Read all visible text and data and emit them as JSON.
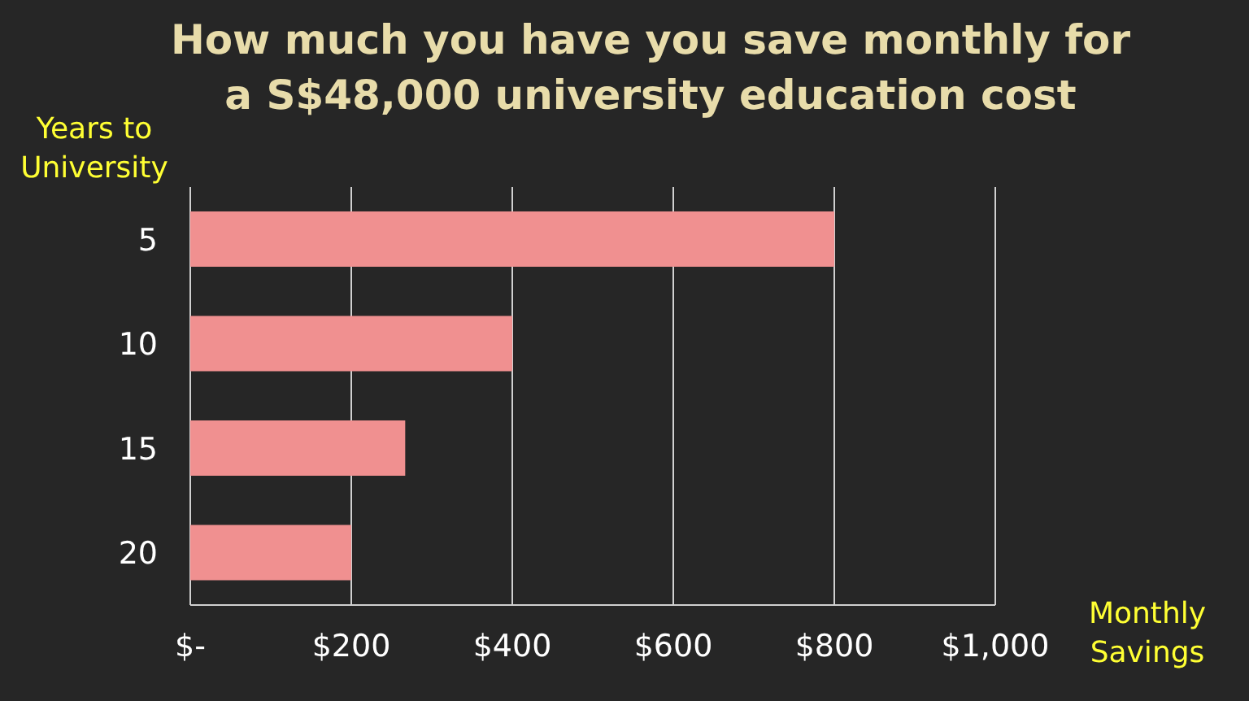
{
  "chart_data": {
    "type": "bar",
    "orientation": "horizontal",
    "title": "How much you have you save monthly for a S$48,000 university education cost",
    "xlabel": "Monthly Savings",
    "ylabel": "Years to University",
    "categories": [
      "5",
      "10",
      "15",
      "20"
    ],
    "values": [
      800,
      400,
      267,
      200
    ],
    "color": "#f09090",
    "xlim": [
      0,
      1000
    ],
    "xticks": [
      {
        "value": 0,
        "label": "$-"
      },
      {
        "value": 200,
        "label": "$200"
      },
      {
        "value": 400,
        "label": "$400"
      },
      {
        "value": 600,
        "label": "$600"
      },
      {
        "value": 800,
        "label": "$800"
      },
      {
        "value": 1000,
        "label": "$1,000"
      }
    ],
    "grid": "x"
  }
}
